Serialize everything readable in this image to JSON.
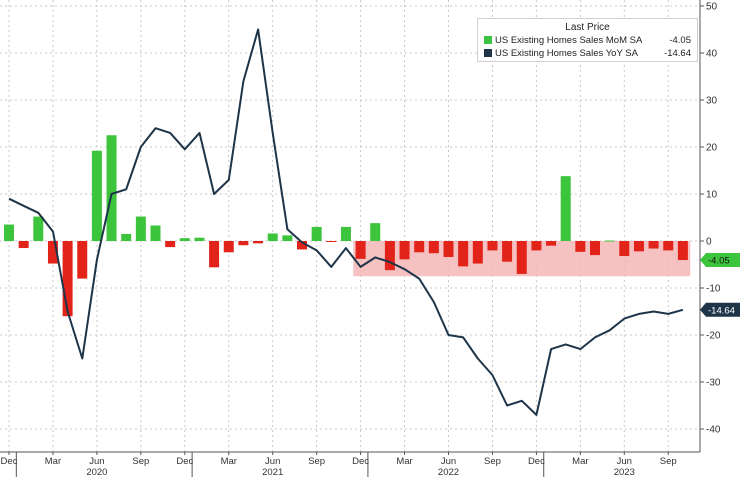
{
  "colors": {
    "mom_pos": "#3cc43c",
    "mom_neg": "#e2231a",
    "yoy_line": "#1e3448",
    "band_fill": "#f4b6b6",
    "grid": "#c8c8c8"
  },
  "chart_data": {
    "type": "bar+line",
    "ylim": [
      -45,
      50
    ],
    "y_ticks": [
      50,
      40,
      30,
      20,
      10,
      0,
      -10,
      -20,
      -30,
      -40
    ],
    "y_tick_labels": [
      "50",
      "40",
      "30",
      "20",
      "10",
      "0",
      "-10",
      "-20",
      "-30",
      "-40"
    ],
    "grid": true,
    "legend_position": "top-right",
    "x_month_labels": [
      {
        "label": "Dec",
        "idx": 0
      },
      {
        "label": "Mar",
        "idx": 3
      },
      {
        "label": "Jun",
        "idx": 6
      },
      {
        "label": "Sep",
        "idx": 9
      },
      {
        "label": "Dec",
        "idx": 12
      },
      {
        "label": "Mar",
        "idx": 15
      },
      {
        "label": "Jun",
        "idx": 18
      },
      {
        "label": "Sep",
        "idx": 21
      },
      {
        "label": "Dec",
        "idx": 24
      },
      {
        "label": "Mar",
        "idx": 27
      },
      {
        "label": "Jun",
        "idx": 30
      },
      {
        "label": "Sep",
        "idx": 33
      },
      {
        "label": "Dec",
        "idx": 36
      },
      {
        "label": "Mar",
        "idx": 39
      },
      {
        "label": "Jun",
        "idx": 42
      },
      {
        "label": "Sep",
        "idx": 45
      }
    ],
    "x_year_labels": [
      {
        "label": "2020",
        "idx": 6
      },
      {
        "label": "2021",
        "idx": 18
      },
      {
        "label": "2022",
        "idx": 30
      },
      {
        "label": "2023",
        "idx": 42
      }
    ],
    "legend_title": "Last Price",
    "series": [
      {
        "name": "US Existing Homes Sales MoM SA",
        "last_value": "-4.05",
        "type": "bar",
        "values": [
          3.5,
          -1.5,
          5.2,
          -4.8,
          -16.0,
          -8.0,
          19.2,
          22.5,
          1.5,
          5.2,
          3.3,
          -1.3,
          0.6,
          0.7,
          -5.6,
          -2.4,
          -0.9,
          -0.5,
          1.6,
          1.2,
          -1.8,
          3.0,
          -0.1,
          3.0,
          -3.8,
          3.8,
          -6.2,
          -3.9,
          -2.4,
          -2.6,
          -3.4,
          -5.4,
          -4.8,
          -2.0,
          -4.4,
          -7.0,
          -2.0,
          -1.0,
          13.8,
          -2.3,
          -3.0,
          0.1,
          -3.2,
          -2.2,
          -1.6,
          -2.0,
          -4.05
        ]
      },
      {
        "name": "US Existing Homes Sales YoY SA",
        "last_value": "-14.64",
        "type": "line",
        "values": [
          9.0,
          7.5,
          6.0,
          2.0,
          -15.0,
          -25.0,
          -4.0,
          10.0,
          11.0,
          20.0,
          24.0,
          23.0,
          19.5,
          23.0,
          10.0,
          13.0,
          34.0,
          45.0,
          23.0,
          2.5,
          -0.3,
          -2.0,
          -5.5,
          -1.5,
          -5.5,
          -3.5,
          -4.5,
          -6.0,
          -8.0,
          -13.0,
          -20.0,
          -20.5,
          -25.0,
          -28.5,
          -35.0,
          -34.0,
          -37.0,
          -23.0,
          -22.0,
          -23.0,
          -20.5,
          -19.0,
          -16.5,
          -15.5,
          -15.0,
          -15.5,
          -14.64
        ]
      }
    ],
    "last_price_tags": [
      "-4.05",
      "-14.64"
    ]
  }
}
